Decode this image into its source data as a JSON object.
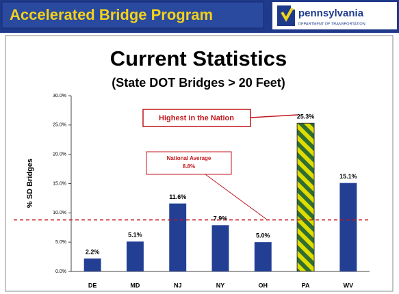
{
  "header": {
    "title": "Accelerated Bridge Program",
    "logo_name": "pennsylvania",
    "logo_subtitle": "DEPARTMENT OF TRANSPORTATION"
  },
  "chart_data": {
    "type": "bar",
    "title": "Current Statistics",
    "subtitle": "(State DOT Bridges > 20 Feet)",
    "y_label": "% SD Bridges",
    "categories": [
      "DE",
      "MD",
      "NJ",
      "NY",
      "OH",
      "PA",
      "WV"
    ],
    "values": [
      2.2,
      5.1,
      11.6,
      7.9,
      5.0,
      25.3,
      15.1
    ],
    "value_labels": [
      "2.2%",
      "5.1%",
      "11.6%",
      "7.9%",
      "5.0%",
      "25.3%",
      "15.1%"
    ],
    "color": "#233f94",
    "hatched": [
      false,
      false,
      false,
      false,
      false,
      true,
      false
    ],
    "hatch_colors": [
      "#e0dc00",
      "#2f6e33"
    ],
    "ylim": [
      0,
      30
    ],
    "yticks": [
      {
        "value": 0,
        "label": "0.0%"
      },
      {
        "value": 5,
        "label": "5.0%"
      },
      {
        "value": 10,
        "label": "10.0%"
      },
      {
        "value": 15,
        "label": "15.0%"
      },
      {
        "value": 20,
        "label": "20.0%"
      },
      {
        "value": 25,
        "label": "25.0%"
      },
      {
        "value": 30,
        "label": "30.0%"
      }
    ],
    "grid": false,
    "reference_line": {
      "value": 8.8,
      "color": "#c0161c",
      "label": [
        "National Average",
        "8.8%"
      ]
    },
    "annotation": "Highest in the Nation"
  }
}
